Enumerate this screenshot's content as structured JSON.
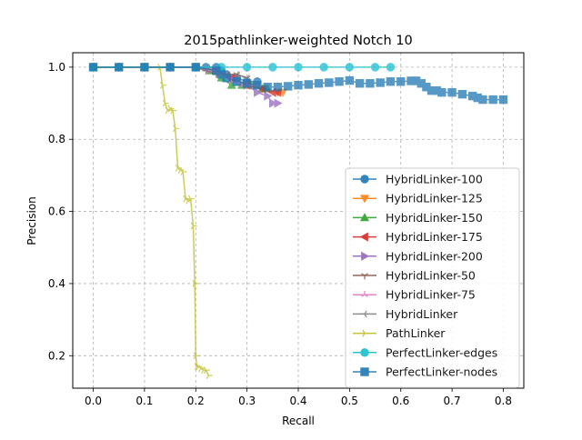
{
  "chart_data": {
    "type": "line",
    "title": "2015pathlinker-weighted Notch 10",
    "xlabel": "Recall",
    "ylabel": "Precision",
    "xlim": [
      -0.04,
      0.84
    ],
    "ylim": [
      0.11,
      1.04
    ],
    "x_ticks": [
      0.0,
      0.1,
      0.2,
      0.3,
      0.4,
      0.5,
      0.6,
      0.7,
      0.8
    ],
    "x_tick_labels": [
      "0.0",
      "0.1",
      "0.2",
      "0.3",
      "0.4",
      "0.5",
      "0.6",
      "0.7",
      "0.8"
    ],
    "y_ticks": [
      0.2,
      0.4,
      0.6,
      0.8,
      1.0
    ],
    "y_tick_labels": [
      "0.2",
      "0.4",
      "0.6",
      "0.8",
      "1.0"
    ],
    "grid": true,
    "grid_style": "dashed",
    "legend_position": "lower-right",
    "series": [
      {
        "name": "HybridLinker-100",
        "color": "#1f77b4",
        "marker": "circle",
        "x": [
          0.0,
          0.05,
          0.1,
          0.15,
          0.2,
          0.22,
          0.24,
          0.25,
          0.26,
          0.28,
          0.3,
          0.32
        ],
        "y": [
          1.0,
          1.0,
          1.0,
          1.0,
          1.0,
          1.0,
          1.0,
          0.99,
          0.98,
          0.97,
          0.96,
          0.96
        ]
      },
      {
        "name": "HybridLinker-125",
        "color": "#ff7f0e",
        "marker": "triangle-down",
        "x": [
          0.0,
          0.05,
          0.1,
          0.15,
          0.2,
          0.24,
          0.27,
          0.3,
          0.33,
          0.36,
          0.37
        ],
        "y": [
          1.0,
          1.0,
          1.0,
          1.0,
          1.0,
          0.99,
          0.97,
          0.95,
          0.94,
          0.93,
          0.93
        ]
      },
      {
        "name": "HybridLinker-150",
        "color": "#2ca02c",
        "marker": "triangle-up",
        "x": [
          0.0,
          0.05,
          0.1,
          0.15,
          0.2,
          0.23,
          0.25,
          0.27,
          0.29,
          0.31,
          0.33,
          0.34
        ],
        "y": [
          1.0,
          1.0,
          1.0,
          1.0,
          1.0,
          0.99,
          0.97,
          0.95,
          0.95,
          0.95,
          0.94,
          0.94
        ]
      },
      {
        "name": "HybridLinker-175",
        "color": "#d62728",
        "marker": "triangle-left",
        "x": [
          0.0,
          0.05,
          0.1,
          0.15,
          0.2,
          0.24,
          0.27,
          0.3,
          0.33,
          0.35,
          0.36
        ],
        "y": [
          1.0,
          1.0,
          1.0,
          1.0,
          1.0,
          0.99,
          0.97,
          0.95,
          0.94,
          0.93,
          0.93
        ]
      },
      {
        "name": "HybridLinker-200",
        "color": "#9467bd",
        "marker": "triangle-right",
        "x": [
          0.0,
          0.05,
          0.1,
          0.15,
          0.2,
          0.24,
          0.27,
          0.3,
          0.32,
          0.34,
          0.35,
          0.36
        ],
        "y": [
          1.0,
          1.0,
          1.0,
          1.0,
          1.0,
          0.99,
          0.97,
          0.95,
          0.93,
          0.92,
          0.9,
          0.9
        ]
      },
      {
        "name": "HybridLinker-50",
        "color": "#8c564b",
        "marker": "tri-down",
        "x": [
          0.0,
          0.05,
          0.1,
          0.15,
          0.2,
          0.22,
          0.24,
          0.26,
          0.28,
          0.3
        ],
        "y": [
          1.0,
          1.0,
          1.0,
          1.0,
          1.0,
          0.99,
          0.98,
          0.98,
          0.98,
          0.97
        ]
      },
      {
        "name": "HybridLinker-75",
        "color": "#e377c2",
        "marker": "tri-up",
        "x": [
          0.0,
          0.05,
          0.1,
          0.15,
          0.2,
          0.23,
          0.25,
          0.27,
          0.29,
          0.31,
          0.32
        ],
        "y": [
          1.0,
          1.0,
          1.0,
          1.0,
          1.0,
          0.99,
          0.98,
          0.96,
          0.95,
          0.95,
          0.95
        ]
      },
      {
        "name": "HybridLinker",
        "color": "#7f7f7f",
        "marker": "tri-left",
        "x": [
          0.0,
          0.05,
          0.1,
          0.15,
          0.2,
          0.22,
          0.24,
          0.26,
          0.28,
          0.3
        ],
        "y": [
          1.0,
          1.0,
          1.0,
          1.0,
          1.0,
          0.99,
          0.98,
          0.98,
          0.98,
          0.97
        ]
      },
      {
        "name": "PathLinker",
        "color": "#bcbd22",
        "marker": "tri-right",
        "x": [
          0.0,
          0.05,
          0.1,
          0.13,
          0.135,
          0.14,
          0.145,
          0.15,
          0.155,
          0.16,
          0.165,
          0.17,
          0.175,
          0.18,
          0.185,
          0.19,
          0.195,
          0.198,
          0.2,
          0.202,
          0.205,
          0.21,
          0.215,
          0.22,
          0.225
        ],
        "y": [
          1.0,
          1.0,
          1.0,
          1.0,
          0.95,
          0.9,
          0.88,
          0.885,
          0.88,
          0.83,
          0.72,
          0.715,
          0.71,
          0.635,
          0.63,
          0.635,
          0.56,
          0.4,
          0.2,
          0.17,
          0.17,
          0.165,
          0.16,
          0.16,
          0.145
        ]
      },
      {
        "name": "PerfectLinker-edges",
        "color": "#17becf",
        "marker": "circle",
        "x": [
          0.0,
          0.05,
          0.1,
          0.15,
          0.2,
          0.25,
          0.3,
          0.35,
          0.4,
          0.45,
          0.5,
          0.55,
          0.58
        ],
        "y": [
          1.0,
          1.0,
          1.0,
          1.0,
          1.0,
          1.0,
          1.0,
          1.0,
          1.0,
          1.0,
          1.0,
          1.0,
          1.0
        ]
      },
      {
        "name": "PerfectLinker-nodes",
        "color": "#1f77b4",
        "marker": "square",
        "x": [
          0.0,
          0.05,
          0.1,
          0.15,
          0.2,
          0.24,
          0.25,
          0.26,
          0.28,
          0.3,
          0.32,
          0.34,
          0.36,
          0.38,
          0.4,
          0.42,
          0.44,
          0.46,
          0.48,
          0.5,
          0.52,
          0.54,
          0.56,
          0.58,
          0.6,
          0.62,
          0.63,
          0.64,
          0.65,
          0.66,
          0.67,
          0.68,
          0.7,
          0.72,
          0.74,
          0.75,
          0.76,
          0.78,
          0.8
        ],
        "y": [
          1.0,
          1.0,
          1.0,
          1.0,
          1.0,
          0.99,
          0.98,
          0.97,
          0.96,
          0.955,
          0.95,
          0.945,
          0.945,
          0.947,
          0.95,
          0.952,
          0.955,
          0.957,
          0.96,
          0.963,
          0.955,
          0.955,
          0.957,
          0.96,
          0.96,
          0.962,
          0.962,
          0.955,
          0.945,
          0.935,
          0.935,
          0.93,
          0.93,
          0.925,
          0.92,
          0.915,
          0.91,
          0.91,
          0.91
        ]
      }
    ]
  }
}
